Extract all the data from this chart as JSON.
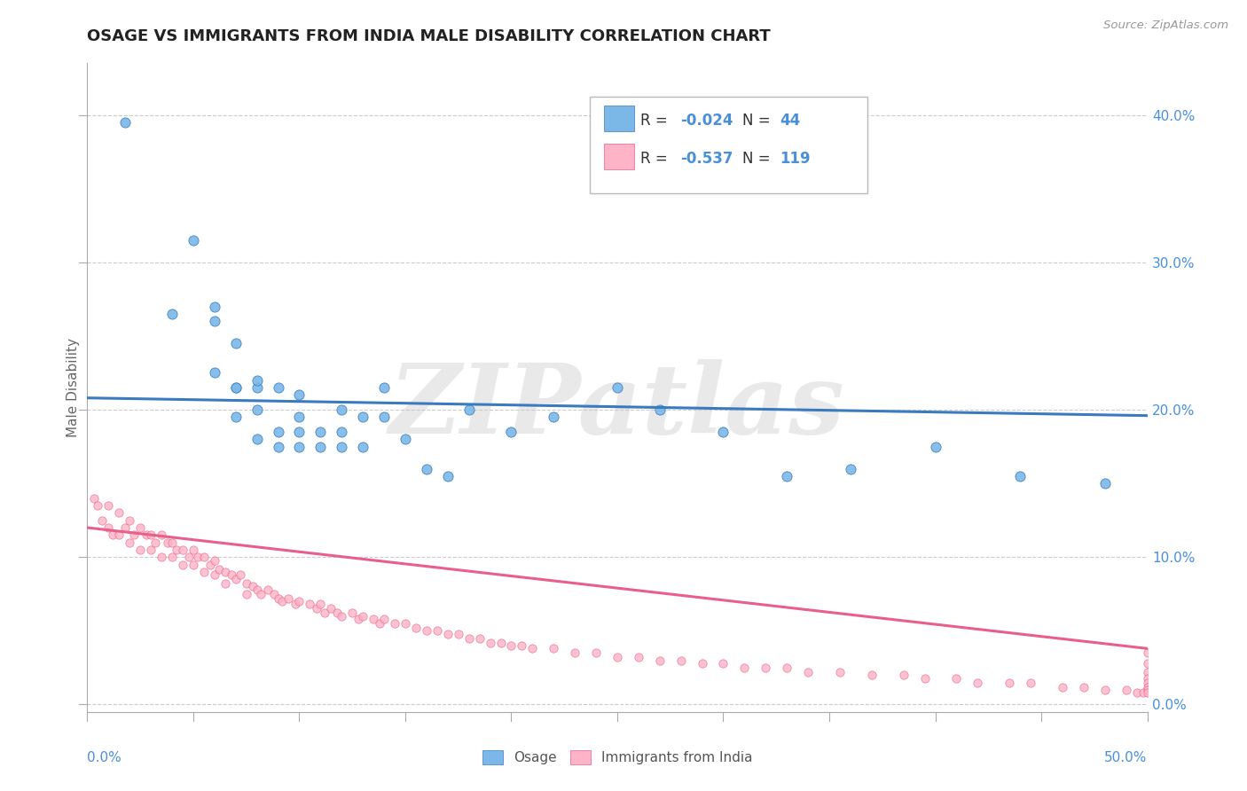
{
  "title": "OSAGE VS IMMIGRANTS FROM INDIA MALE DISABILITY CORRELATION CHART",
  "source": "Source: ZipAtlas.com",
  "ylabel": "Male Disability",
  "ylabel_right_vals": [
    0.0,
    0.1,
    0.2,
    0.3,
    0.4
  ],
  "xlim": [
    0.0,
    0.5
  ],
  "ylim": [
    -0.005,
    0.435
  ],
  "color_blue": "#7bb8e8",
  "color_pink": "#ffb3c6",
  "color_blue_line": "#3a7abf",
  "color_pink_line": "#e8608a",
  "watermark": "ZIPatlas",
  "blue_scatter_x": [
    0.018,
    0.04,
    0.05,
    0.06,
    0.06,
    0.06,
    0.07,
    0.07,
    0.07,
    0.07,
    0.08,
    0.08,
    0.08,
    0.08,
    0.09,
    0.09,
    0.09,
    0.1,
    0.1,
    0.1,
    0.1,
    0.11,
    0.11,
    0.12,
    0.12,
    0.12,
    0.13,
    0.13,
    0.14,
    0.14,
    0.15,
    0.16,
    0.17,
    0.18,
    0.2,
    0.22,
    0.25,
    0.27,
    0.3,
    0.33,
    0.36,
    0.4,
    0.44,
    0.48
  ],
  "blue_scatter_y": [
    0.395,
    0.265,
    0.315,
    0.26,
    0.225,
    0.27,
    0.215,
    0.245,
    0.215,
    0.195,
    0.215,
    0.2,
    0.22,
    0.18,
    0.215,
    0.185,
    0.175,
    0.21,
    0.195,
    0.185,
    0.175,
    0.185,
    0.175,
    0.2,
    0.185,
    0.175,
    0.195,
    0.175,
    0.195,
    0.215,
    0.18,
    0.16,
    0.155,
    0.2,
    0.185,
    0.195,
    0.215,
    0.2,
    0.185,
    0.155,
    0.16,
    0.175,
    0.155,
    0.15
  ],
  "pink_scatter_x": [
    0.003,
    0.005,
    0.007,
    0.01,
    0.01,
    0.012,
    0.015,
    0.015,
    0.018,
    0.02,
    0.02,
    0.022,
    0.025,
    0.025,
    0.028,
    0.03,
    0.03,
    0.032,
    0.035,
    0.035,
    0.038,
    0.04,
    0.04,
    0.042,
    0.045,
    0.045,
    0.048,
    0.05,
    0.05,
    0.052,
    0.055,
    0.055,
    0.058,
    0.06,
    0.06,
    0.062,
    0.065,
    0.065,
    0.068,
    0.07,
    0.072,
    0.075,
    0.075,
    0.078,
    0.08,
    0.082,
    0.085,
    0.088,
    0.09,
    0.092,
    0.095,
    0.098,
    0.1,
    0.105,
    0.108,
    0.11,
    0.112,
    0.115,
    0.118,
    0.12,
    0.125,
    0.128,
    0.13,
    0.135,
    0.138,
    0.14,
    0.145,
    0.15,
    0.155,
    0.16,
    0.165,
    0.17,
    0.175,
    0.18,
    0.185,
    0.19,
    0.195,
    0.2,
    0.205,
    0.21,
    0.22,
    0.23,
    0.24,
    0.25,
    0.26,
    0.27,
    0.28,
    0.29,
    0.3,
    0.31,
    0.32,
    0.33,
    0.34,
    0.355,
    0.37,
    0.385,
    0.395,
    0.41,
    0.42,
    0.435,
    0.445,
    0.46,
    0.47,
    0.48,
    0.49,
    0.495,
    0.498,
    0.5,
    0.5,
    0.5,
    0.5,
    0.5,
    0.5,
    0.5,
    0.5
  ],
  "pink_scatter_y": [
    0.14,
    0.135,
    0.125,
    0.135,
    0.12,
    0.115,
    0.13,
    0.115,
    0.12,
    0.125,
    0.11,
    0.115,
    0.12,
    0.105,
    0.115,
    0.115,
    0.105,
    0.11,
    0.115,
    0.1,
    0.11,
    0.11,
    0.1,
    0.105,
    0.105,
    0.095,
    0.1,
    0.105,
    0.095,
    0.1,
    0.1,
    0.09,
    0.095,
    0.098,
    0.088,
    0.092,
    0.09,
    0.082,
    0.088,
    0.085,
    0.088,
    0.082,
    0.075,
    0.08,
    0.078,
    0.075,
    0.078,
    0.075,
    0.072,
    0.07,
    0.072,
    0.068,
    0.07,
    0.068,
    0.065,
    0.068,
    0.062,
    0.065,
    0.062,
    0.06,
    0.062,
    0.058,
    0.06,
    0.058,
    0.055,
    0.058,
    0.055,
    0.055,
    0.052,
    0.05,
    0.05,
    0.048,
    0.048,
    0.045,
    0.045,
    0.042,
    0.042,
    0.04,
    0.04,
    0.038,
    0.038,
    0.035,
    0.035,
    0.032,
    0.032,
    0.03,
    0.03,
    0.028,
    0.028,
    0.025,
    0.025,
    0.025,
    0.022,
    0.022,
    0.02,
    0.02,
    0.018,
    0.018,
    0.015,
    0.015,
    0.015,
    0.012,
    0.012,
    0.01,
    0.01,
    0.008,
    0.008,
    0.035,
    0.028,
    0.022,
    0.018,
    0.015,
    0.012,
    0.01,
    0.008
  ],
  "blue_trend_x": [
    0.0,
    0.5
  ],
  "blue_trend_y": [
    0.208,
    0.196
  ],
  "pink_trend_x": [
    0.0,
    0.5
  ],
  "pink_trend_y": [
    0.12,
    0.038
  ],
  "grid_color": "#cccccc",
  "background_color": "#ffffff",
  "title_color": "#222222",
  "axis_label_color": "#4a90d9",
  "legend_label_color": "#333333"
}
